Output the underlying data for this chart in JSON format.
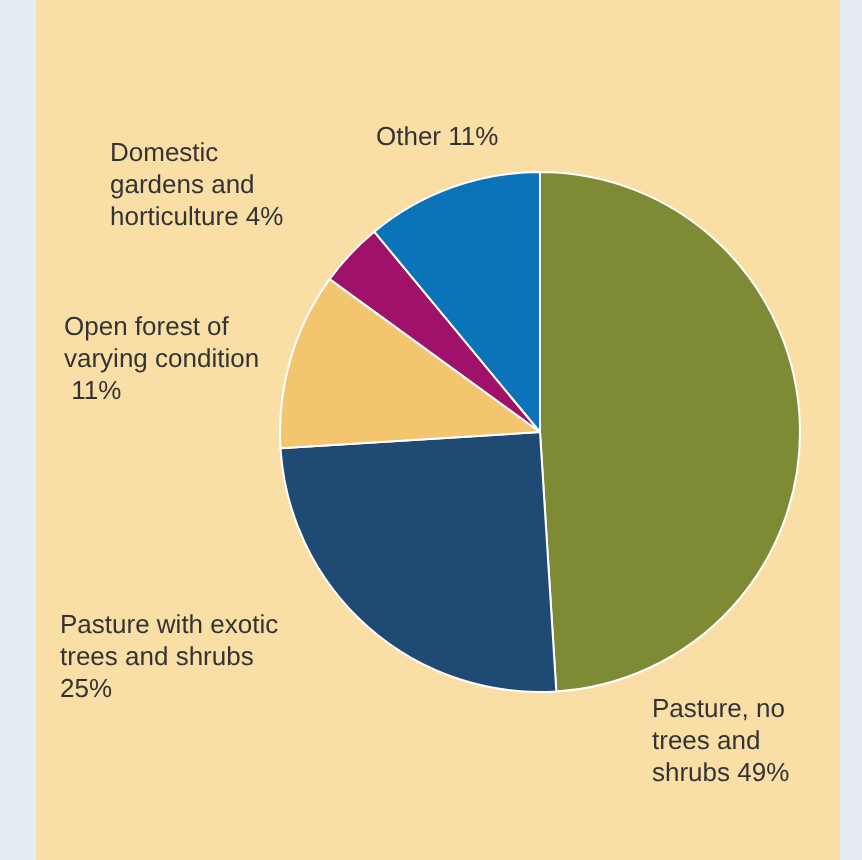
{
  "chart_data": {
    "type": "pie",
    "categories": [
      "Pasture, no trees and shrubs",
      "Pasture with exotic trees and shrubs",
      "Open forest of varying condition",
      "Domestic gardens and horticulture",
      "Other"
    ],
    "values": [
      49,
      25,
      11,
      4,
      11
    ],
    "colors": [
      "#7f8b34",
      "#1f4a73",
      "#f2c56e",
      "#a0116a",
      "#0b73b8"
    ],
    "value_labels": [
      "49%",
      "25%",
      "11%",
      "4%",
      "11%"
    ]
  }
}
